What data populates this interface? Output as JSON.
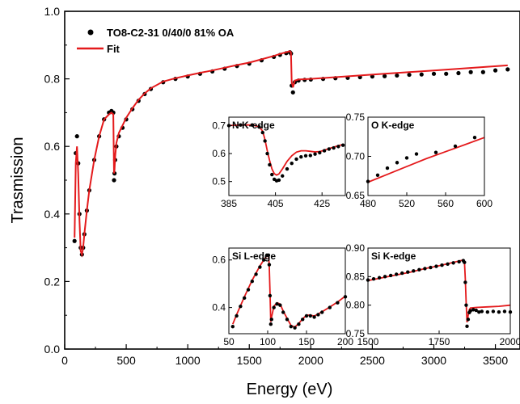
{
  "chart_data": {
    "type": "scatter",
    "xlabel": "Energy (eV)",
    "ylabel": "Trasmission",
    "xlim": [
      0,
      3700
    ],
    "ylim": [
      0,
      1.0
    ],
    "xticks": [
      0,
      500,
      1000,
      1500,
      2000,
      2500,
      3000,
      3500
    ],
    "xtick_labels": [
      "0",
      "500",
      "1000",
      "1500",
      "2000",
      "2500",
      "3000",
      "3500"
    ],
    "yticks": [
      0.0,
      0.2,
      0.4,
      0.6,
      0.8,
      1.0
    ],
    "ytick_labels": [
      "0.0",
      "0.2",
      "0.4",
      "0.6",
      "0.8",
      "1.0"
    ],
    "grid": false,
    "legend": "top-left",
    "series": [
      {
        "name": "TO8-C2-31 0/40/0 81% OA",
        "kind": "points",
        "color": "#000000",
        "x": [
          80,
          90,
          100,
          110,
          120,
          130,
          140,
          150,
          160,
          180,
          200,
          240,
          280,
          320,
          360,
          380,
          395,
          401,
          405,
          410,
          420,
          440,
          470,
          500,
          550,
          600,
          650,
          700,
          800,
          900,
          1000,
          1100,
          1200,
          1300,
          1400,
          1500,
          1600,
          1700,
          1750,
          1800,
          1830,
          1839,
          1845,
          1855,
          1870,
          1900,
          1950,
          2000,
          2100,
          2200,
          2300,
          2400,
          2500,
          2600,
          2700,
          2800,
          2900,
          3000,
          3100,
          3200,
          3300,
          3400,
          3500,
          3600
        ],
        "y": [
          0.32,
          0.58,
          0.63,
          0.55,
          0.4,
          0.3,
          0.28,
          0.3,
          0.34,
          0.41,
          0.47,
          0.56,
          0.63,
          0.68,
          0.7,
          0.705,
          0.7,
          0.5,
          0.52,
          0.56,
          0.6,
          0.63,
          0.655,
          0.68,
          0.71,
          0.735,
          0.755,
          0.77,
          0.79,
          0.8,
          0.807,
          0.815,
          0.822,
          0.83,
          0.838,
          0.845,
          0.855,
          0.865,
          0.871,
          0.876,
          0.879,
          0.875,
          0.78,
          0.76,
          0.79,
          0.795,
          0.797,
          0.798,
          0.8,
          0.802,
          0.803,
          0.805,
          0.807,
          0.808,
          0.81,
          0.812,
          0.813,
          0.815,
          0.815,
          0.817,
          0.82,
          0.82,
          0.825,
          0.828
        ]
      },
      {
        "name": "Fit",
        "kind": "line",
        "color": "#e41a1c",
        "x": [
          80,
          90,
          100,
          110,
          120,
          130,
          140,
          150,
          160,
          180,
          200,
          240,
          280,
          320,
          360,
          380,
          395,
          401,
          405,
          410,
          420,
          440,
          470,
          500,
          550,
          600,
          650,
          700,
          800,
          900,
          1000,
          1100,
          1200,
          1300,
          1400,
          1500,
          1600,
          1700,
          1750,
          1800,
          1830,
          1839,
          1845,
          1855,
          1870,
          1900,
          2000,
          2200,
          2400,
          2600,
          2800,
          3000,
          3200,
          3400,
          3600
        ],
        "y": [
          0.33,
          0.55,
          0.6,
          0.52,
          0.38,
          0.29,
          0.28,
          0.3,
          0.34,
          0.41,
          0.47,
          0.56,
          0.63,
          0.68,
          0.695,
          0.7,
          0.695,
          0.52,
          0.53,
          0.57,
          0.61,
          0.64,
          0.662,
          0.685,
          0.713,
          0.738,
          0.757,
          0.772,
          0.792,
          0.802,
          0.81,
          0.818,
          0.825,
          0.833,
          0.841,
          0.848,
          0.858,
          0.868,
          0.874,
          0.879,
          0.882,
          0.878,
          0.79,
          0.775,
          0.795,
          0.798,
          0.8,
          0.805,
          0.81,
          0.815,
          0.82,
          0.825,
          0.83,
          0.835,
          0.84
        ]
      }
    ],
    "insets": [
      {
        "title": "N K-edge",
        "xlim": [
          385,
          435
        ],
        "ylim": [
          0.45,
          0.73
        ],
        "xticks": [
          385,
          405,
          425
        ],
        "xtick_labels": [
          "385",
          "405",
          "425"
        ],
        "yticks": [
          0.5,
          0.6,
          0.7
        ],
        "ytick_labels": [
          "0.5",
          "0.6",
          "0.7"
        ],
        "points": {
          "x": [
            385,
            390,
            395,
            398,
            399.5,
            400.5,
            401.5,
            402.5,
            403.5,
            404.5,
            405.5,
            406.5,
            408,
            410,
            412,
            414,
            416,
            418,
            420,
            422,
            424,
            426,
            428,
            430,
            432,
            434
          ],
          "y": [
            0.7,
            0.702,
            0.702,
            0.695,
            0.675,
            0.645,
            0.6,
            0.56,
            0.525,
            0.508,
            0.503,
            0.505,
            0.52,
            0.545,
            0.565,
            0.58,
            0.588,
            0.592,
            0.593,
            0.598,
            0.603,
            0.61,
            0.616,
            0.62,
            0.625,
            0.63
          ]
        },
        "fit": {
          "x": [
            385,
            390,
            395,
            398,
            399.5,
            400.5,
            401.5,
            402.5,
            403.5,
            404.5,
            405.5,
            406.5,
            408,
            410,
            412,
            414,
            416,
            418,
            420,
            422,
            424,
            426,
            428,
            430,
            432,
            434
          ],
          "y": [
            0.7,
            0.702,
            0.702,
            0.696,
            0.68,
            0.65,
            0.61,
            0.575,
            0.545,
            0.528,
            0.523,
            0.527,
            0.545,
            0.572,
            0.592,
            0.605,
            0.61,
            0.61,
            0.608,
            0.606,
            0.607,
            0.612,
            0.618,
            0.623,
            0.628,
            0.632
          ]
        }
      },
      {
        "title": "O K-edge",
        "xlim": [
          480,
          600
        ],
        "ylim": [
          0.65,
          0.75
        ],
        "xticks": [
          480,
          520,
          560,
          600
        ],
        "xtick_labels": [
          "480",
          "520",
          "560",
          "600"
        ],
        "yticks": [
          0.65,
          0.7,
          0.75
        ],
        "ytick_labels": [
          "0.65",
          "0.70",
          "0.75"
        ],
        "points": {
          "x": [
            480,
            490,
            500,
            510,
            520,
            530,
            550,
            570,
            590
          ],
          "y": [
            0.668,
            0.676,
            0.685,
            0.692,
            0.698,
            0.703,
            0.705,
            0.713,
            0.724
          ]
        },
        "fit": {
          "x": [
            480,
            500,
            520,
            540,
            560,
            580,
            600
          ],
          "y": [
            0.667,
            0.677,
            0.687,
            0.697,
            0.706,
            0.715,
            0.724
          ]
        }
      },
      {
        "title": "Si L-edge",
        "xlim": [
          50,
          200
        ],
        "ylim": [
          0.29,
          0.65
        ],
        "xticks": [
          50,
          100,
          150,
          200
        ],
        "xtick_labels": [
          "50",
          "100",
          "150",
          "200"
        ],
        "yticks": [
          0.4,
          0.6
        ],
        "ytick_labels": [
          "0.4",
          "0.6"
        ],
        "points": {
          "x": [
            55,
            60,
            65,
            70,
            75,
            80,
            85,
            90,
            95,
            99,
            101,
            102,
            103,
            104,
            105,
            108,
            112,
            116,
            120,
            125,
            130,
            135,
            140,
            145,
            150,
            155,
            160,
            165,
            170,
            180,
            190,
            200
          ],
          "y": [
            0.32,
            0.365,
            0.405,
            0.44,
            0.475,
            0.51,
            0.54,
            0.57,
            0.6,
            0.62,
            0.62,
            0.58,
            0.45,
            0.33,
            0.35,
            0.4,
            0.415,
            0.41,
            0.38,
            0.35,
            0.32,
            0.315,
            0.33,
            0.35,
            0.365,
            0.365,
            0.36,
            0.37,
            0.38,
            0.4,
            0.42,
            0.445
          ]
        },
        "fit": {
          "x": [
            55,
            60,
            70,
            80,
            90,
            95,
            99,
            101,
            102,
            103,
            104,
            105,
            108,
            112,
            116,
            120,
            125,
            130,
            135,
            140,
            145,
            150,
            155,
            160,
            170,
            180,
            190,
            200
          ],
          "y": [
            0.33,
            0.37,
            0.445,
            0.515,
            0.575,
            0.6,
            0.618,
            0.62,
            0.58,
            0.46,
            0.34,
            0.36,
            0.405,
            0.42,
            0.415,
            0.385,
            0.355,
            0.325,
            0.318,
            0.333,
            0.352,
            0.368,
            0.368,
            0.364,
            0.382,
            0.402,
            0.423,
            0.448
          ]
        }
      },
      {
        "title": "Si K-edge",
        "xlim": [
          1500,
          2000
        ],
        "ylim": [
          0.75,
          0.9
        ],
        "xticks": [
          1500,
          1750,
          2000
        ],
        "xtick_labels": [
          "1500",
          "1750",
          "2000"
        ],
        "yticks": [
          0.75,
          0.8,
          0.85,
          0.9
        ],
        "ytick_labels": [
          "0.75",
          "0.80",
          "0.85",
          "0.90"
        ],
        "points": {
          "x": [
            1500,
            1520,
            1540,
            1560,
            1580,
            1600,
            1620,
            1640,
            1660,
            1680,
            1700,
            1720,
            1740,
            1760,
            1780,
            1800,
            1820,
            1835,
            1839,
            1842,
            1845,
            1848,
            1852,
            1856,
            1860,
            1870,
            1880,
            1890,
            1900,
            1920,
            1940,
            1960,
            1980,
            2000
          ],
          "y": [
            0.844,
            0.846,
            0.848,
            0.85,
            0.852,
            0.854,
            0.856,
            0.858,
            0.86,
            0.862,
            0.864,
            0.866,
            0.868,
            0.87,
            0.872,
            0.874,
            0.876,
            0.878,
            0.875,
            0.84,
            0.8,
            0.763,
            0.775,
            0.787,
            0.79,
            0.792,
            0.791,
            0.788,
            0.789,
            0.788,
            0.789,
            0.788,
            0.789,
            0.788
          ]
        },
        "fit": {
          "x": [
            1500,
            1550,
            1600,
            1650,
            1700,
            1750,
            1800,
            1835,
            1839,
            1842,
            1845,
            1848,
            1852,
            1856,
            1860,
            1880,
            1920,
            1960,
            2000
          ],
          "y": [
            0.843,
            0.848,
            0.853,
            0.858,
            0.864,
            0.869,
            0.875,
            0.879,
            0.877,
            0.845,
            0.805,
            0.77,
            0.782,
            0.792,
            0.795,
            0.796,
            0.797,
            0.798,
            0.8
          ]
        }
      }
    ]
  }
}
